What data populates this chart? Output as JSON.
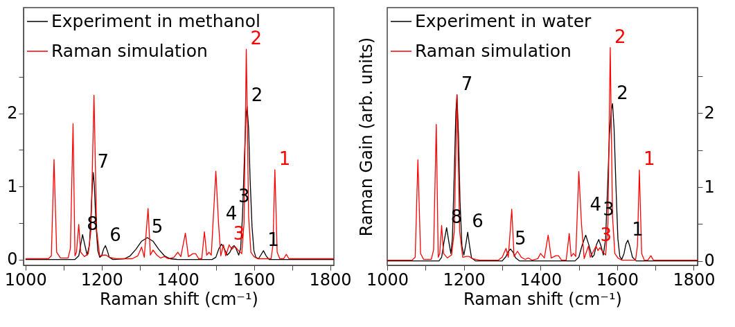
{
  "chart_data": [
    {
      "type": "line",
      "xlabel": "Raman shift (cm⁻¹)",
      "xlim": [
        995,
        1810
      ],
      "ylim": [
        -0.08,
        3.45
      ],
      "xticks": [
        1000,
        {
          "value": 1100,
          "label": null
        },
        1200,
        {
          "value": 1300,
          "label": null
        },
        1400,
        {
          "value": 1500,
          "label": null
        },
        1600,
        {
          "value": 1700,
          "label": null
        },
        1800
      ],
      "yticks": [
        0,
        {
          "value": 0.5,
          "label": null
        },
        1,
        {
          "value": 1.5,
          "label": null
        },
        2,
        {
          "value": 2.5,
          "label": null
        }
      ],
      "legend": "top left",
      "grid": false,
      "series": [
        {
          "name": "Experiment in methanol",
          "color": "#000000",
          "x": [
            1000,
            1130,
            1140,
            1145,
            1150,
            1155,
            1162,
            1168,
            1172,
            1176,
            1178,
            1181,
            1185,
            1190,
            1195,
            1200,
            1205,
            1210,
            1215,
            1220,
            1230,
            1260,
            1275,
            1290,
            1305,
            1320,
            1335,
            1350,
            1365,
            1380,
            1400,
            1490,
            1500,
            1508,
            1515,
            1522,
            1530,
            1537,
            1543,
            1548,
            1553,
            1560,
            1565,
            1570,
            1575,
            1579,
            1582,
            1586,
            1590,
            1595,
            1600,
            1605,
            1612,
            1618,
            1625,
            1632,
            1640,
            1810
          ],
          "values": [
            0,
            0,
            0.05,
            0.2,
            0.34,
            0.22,
            0.06,
            0.2,
            0.6,
            1.05,
            1.19,
            1.0,
            0.5,
            0.12,
            0.03,
            0.05,
            0.14,
            0.19,
            0.12,
            0.03,
            0,
            0.01,
            0.05,
            0.14,
            0.25,
            0.3,
            0.25,
            0.14,
            0.05,
            0.01,
            0,
            0,
            0.03,
            0.15,
            0.21,
            0.15,
            0.06,
            0.1,
            0.17,
            0.19,
            0.15,
            0.06,
            0.15,
            0.6,
            1.4,
            1.95,
            2.1,
            1.8,
            1.1,
            0.45,
            0.12,
            0.03,
            0.01,
            0.06,
            0.12,
            0.05,
            0,
            0
          ]
        },
        {
          "name": "Raman simulation",
          "color": "#ff0000",
          "x": [
            1000,
            1060,
            1068,
            1075,
            1082,
            1092,
            1112,
            1118,
            1125,
            1130,
            1134,
            1140,
            1145,
            1155,
            1165,
            1172,
            1180,
            1187,
            1195,
            1205,
            1212,
            1220,
            1240,
            1280,
            1295,
            1305,
            1312,
            1322,
            1328,
            1335,
            1345,
            1355,
            1365,
            1375,
            1390,
            1400,
            1408,
            1420,
            1428,
            1440,
            1447,
            1455,
            1463,
            1470,
            1476,
            1482,
            1488,
            1500,
            1507,
            1513,
            1520,
            1526,
            1535,
            1542,
            1550,
            1560,
            1568,
            1574,
            1580,
            1586,
            1592,
            1600,
            1610,
            1645,
            1650,
            1655,
            1661,
            1668,
            1678,
            1685,
            1692,
            1810
          ],
          "values": [
            0.01,
            0.01,
            0.05,
            1.37,
            0.1,
            0.02,
            0.02,
            0.15,
            1.86,
            0.05,
            0.1,
            0.48,
            0.1,
            0.04,
            0.08,
            0.4,
            2.25,
            0.4,
            0.05,
            0.06,
            0.06,
            0.03,
            0.01,
            0.01,
            0.05,
            0.17,
            0.03,
            0.7,
            0.06,
            0.13,
            0.06,
            0.02,
            0.04,
            0.01,
            0.03,
            0.1,
            0.04,
            0.36,
            0.04,
            0.08,
            0.08,
            0.01,
            0.01,
            0.38,
            0.06,
            0.1,
            0.06,
            1.21,
            0.5,
            0.05,
            0.2,
            0.05,
            0.2,
            0.14,
            0.18,
            0.12,
            0.08,
            0.5,
            2.88,
            0.6,
            0.1,
            0.04,
            0.01,
            0.01,
            0.2,
            1.23,
            0.1,
            0.01,
            0.01,
            0.07,
            0.01,
            0.01
          ]
        }
      ],
      "annotations": [
        {
          "text": "8",
          "x": 1150,
          "y": 0.34
        },
        {
          "text": "7",
          "x": 1178,
          "y": 1.19
        },
        {
          "text": "6",
          "x": 1210,
          "y": 0.19
        },
        {
          "text": "5",
          "x": 1320,
          "y": 0.3
        },
        {
          "text": "3",
          "x": 1535,
          "y": 0.2
        },
        {
          "text": "4",
          "x": 1515,
          "y": 0.21
        },
        {
          "text": "3",
          "x": 1548,
          "y": 0.19
        },
        {
          "text": "1",
          "x": 1625,
          "y": 0.12
        },
        {
          "text": "2",
          "x": 1582,
          "y": 2.1
        },
        {
          "text": "2",
          "x": 1580,
          "y": 2.88
        },
        {
          "text": "1",
          "x": 1655,
          "y": 1.23
        }
      ]
    },
    {
      "type": "line",
      "xlabel": "Raman shift (cm⁻¹)",
      "ylabel": "Raman Gain (arb. units)",
      "xlim": [
        1000,
        1810
      ],
      "ylim": [
        -0.06,
        3.43
      ],
      "xticks": [
        1000,
        {
          "value": 1100,
          "label": null
        },
        1200,
        {
          "value": 1300,
          "label": null
        },
        1400,
        {
          "value": 1500,
          "label": null
        },
        1600,
        {
          "value": 1700,
          "label": null
        },
        1800
      ],
      "yticks": [
        0,
        {
          "value": 0.5,
          "label": null
        },
        1,
        {
          "value": 1.5,
          "label": null
        },
        2,
        {
          "value": 2.5,
          "label": null
        }
      ],
      "legend": "top left",
      "grid": false,
      "series": [
        {
          "name": "Experiment in water",
          "color": "#000000",
          "x": [
            1000,
            1135,
            1142,
            1148,
            1155,
            1161,
            1166,
            1170,
            1175,
            1179,
            1182,
            1186,
            1190,
            1195,
            1200,
            1205,
            1210,
            1215,
            1220,
            1230,
            1300,
            1310,
            1316,
            1322,
            1328,
            1335,
            1345,
            1490,
            1500,
            1508,
            1518,
            1526,
            1535,
            1540,
            1546,
            1552,
            1558,
            1564,
            1570,
            1575,
            1580,
            1585,
            1588,
            1592,
            1597,
            1602,
            1607,
            1612,
            1618,
            1623,
            1628,
            1633,
            1640,
            1650,
            1810
          ],
          "values": [
            0,
            0,
            0.05,
            0.25,
            0.45,
            0.25,
            0.1,
            0.3,
            1.2,
            2.0,
            2.25,
            1.7,
            0.8,
            0.2,
            0.08,
            0.22,
            0.39,
            0.2,
            0.04,
            0,
            0,
            0.06,
            0.13,
            0.16,
            0.12,
            0.04,
            0,
            0,
            0.05,
            0.2,
            0.35,
            0.22,
            0.05,
            0.08,
            0.22,
            0.29,
            0.2,
            0.08,
            0.3,
            1.0,
            1.7,
            2.05,
            2.13,
            1.8,
            1.0,
            0.3,
            0.06,
            0.02,
            0.1,
            0.23,
            0.28,
            0.2,
            0.05,
            0,
            0
          ]
        },
        {
          "name": "Raman simulation",
          "color": "#ff0000",
          "x": [
            1000,
            1065,
            1073,
            1080,
            1087,
            1095,
            1115,
            1121,
            1128,
            1133,
            1137,
            1142,
            1147,
            1157,
            1168,
            1175,
            1182,
            1189,
            1197,
            1207,
            1214,
            1222,
            1242,
            1290,
            1300,
            1310,
            1316,
            1325,
            1331,
            1340,
            1350,
            1360,
            1368,
            1378,
            1393,
            1400,
            1410,
            1420,
            1428,
            1440,
            1447,
            1455,
            1467,
            1475,
            1480,
            1486,
            1492,
            1500,
            1507,
            1514,
            1525,
            1530,
            1545,
            1550,
            1555,
            1563,
            1570,
            1576,
            1582,
            1588,
            1594,
            1602,
            1612,
            1648,
            1653,
            1658,
            1664,
            1671,
            1680,
            1688,
            1695,
            1810
          ],
          "values": [
            0.01,
            0.01,
            0.05,
            1.37,
            0.1,
            0.02,
            0.02,
            0.15,
            1.85,
            0.05,
            0.1,
            0.48,
            0.1,
            0.04,
            0.08,
            0.4,
            2.25,
            0.4,
            0.05,
            0.06,
            0.06,
            0.03,
            0.01,
            0.01,
            0.05,
            0.17,
            0.05,
            0.7,
            0.06,
            0.13,
            0.05,
            0.02,
            0.04,
            0.01,
            0.03,
            0.1,
            0.04,
            0.35,
            0.04,
            0.07,
            0.07,
            0.01,
            0.01,
            0.37,
            0.06,
            0.1,
            0.06,
            1.21,
            0.5,
            0.03,
            0.2,
            0.05,
            0.2,
            0.14,
            0.18,
            0.12,
            0.08,
            0.5,
            2.89,
            0.6,
            0.1,
            0.04,
            0.01,
            0.01,
            0.2,
            1.23,
            0.1,
            0.01,
            0.01,
            0.07,
            0.01,
            0.01
          ]
        }
      ],
      "annotations": [
        {
          "text": "8",
          "x": 1155,
          "y": 0.45
        },
        {
          "text": "7",
          "x": 1182,
          "y": 2.25
        },
        {
          "text": "6",
          "x": 1210,
          "y": 0.39
        },
        {
          "text": "5",
          "x": 1322,
          "y": 0.16
        },
        {
          "text": "3",
          "x": 1545,
          "y": 0.2
        },
        {
          "text": "4",
          "x": 1518,
          "y": 0.35
        },
        {
          "text": "3",
          "x": 1552,
          "y": 0.29
        },
        {
          "text": "1",
          "x": 1628,
          "y": 0.28
        },
        {
          "text": "2",
          "x": 1588,
          "y": 2.13
        },
        {
          "text": "2",
          "x": 1582,
          "y": 2.89
        },
        {
          "text": "1",
          "x": 1658,
          "y": 1.23
        }
      ]
    }
  ]
}
